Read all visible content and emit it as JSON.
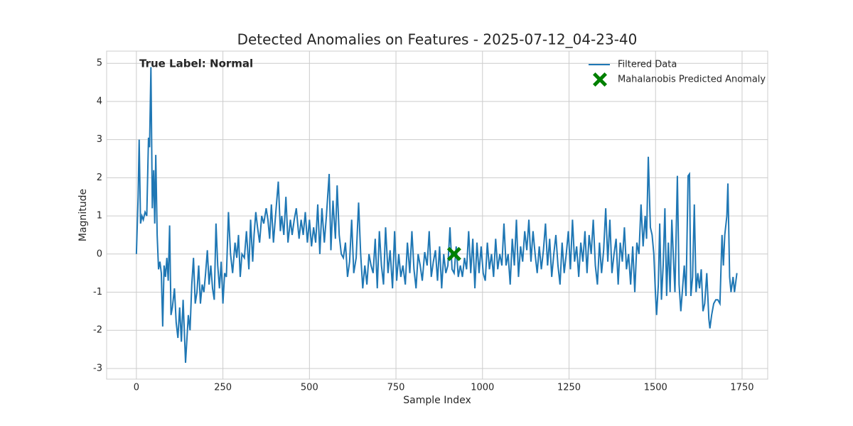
{
  "chart_data": {
    "type": "line",
    "title": "Detected Anomalies on Features - 2025-07-12_04-23-40",
    "xlabel": "Sample Index",
    "ylabel": "Magnitude",
    "annotation": "True Label: Normal",
    "xlim": [
      -86,
      1824
    ],
    "ylim": [
      -3.28,
      5.32
    ],
    "xticks": [
      0,
      250,
      500,
      750,
      1000,
      1250,
      1500,
      1750
    ],
    "yticks": [
      -3,
      -2,
      -1,
      0,
      1,
      2,
      3,
      4,
      5
    ],
    "grid": true,
    "legend": "upper right",
    "series": [
      {
        "name": "Filtered Data",
        "type": "line",
        "color": "#1f77b4",
        "x": [
          0,
          5,
          8,
          12,
          16,
          20,
          25,
          30,
          35,
          38,
          42,
          46,
          50,
          53,
          56,
          60,
          64,
          68,
          72,
          76,
          80,
          84,
          88,
          92,
          96,
          100,
          104,
          110,
          115,
          120,
          125,
          130,
          135,
          142,
          150,
          155,
          160,
          165,
          170,
          175,
          180,
          185,
          190,
          195,
          200,
          205,
          210,
          215,
          220,
          225,
          230,
          235,
          240,
          245,
          250,
          255,
          260,
          266,
          272,
          278,
          285,
          290,
          295,
          300,
          305,
          312,
          318,
          325,
          330,
          336,
          340,
          345,
          350,
          356,
          362,
          368,
          375,
          380,
          385,
          390,
          396,
          402,
          410,
          416,
          420,
          426,
          432,
          438,
          445,
          450,
          456,
          462,
          470,
          476,
          482,
          488,
          494,
          500,
          506,
          512,
          518,
          524,
          530,
          536,
          543,
          549,
          557,
          562,
          568,
          575,
          580,
          586,
          592,
          598,
          604,
          610,
          616,
          622,
          628,
          635,
          642,
          648,
          654,
          660,
          666,
          672,
          678,
          684,
          690,
          696,
          702,
          708,
          714,
          720,
          727,
          733,
          740,
          746,
          752,
          758,
          764,
          770,
          777,
          783,
          790,
          796,
          802,
          808,
          814,
          820,
          826,
          833,
          840,
          846,
          852,
          858,
          864,
          870,
          876,
          882,
          888,
          894,
          900,
          906,
          912,
          918,
          924,
          930,
          936,
          942,
          948,
          954,
          960,
          966,
          972,
          978,
          984,
          990,
          996,
          1002,
          1008,
          1014,
          1020,
          1026,
          1032,
          1038,
          1044,
          1050,
          1056,
          1062,
          1068,
          1074,
          1080,
          1086,
          1092,
          1098,
          1104,
          1110,
          1116,
          1122,
          1128,
          1134,
          1140,
          1146,
          1152,
          1158,
          1164,
          1170,
          1176,
          1182,
          1188,
          1194,
          1200,
          1206,
          1212,
          1218,
          1224,
          1230,
          1236,
          1242,
          1248,
          1254,
          1260,
          1266,
          1272,
          1278,
          1284,
          1290,
          1296,
          1302,
          1308,
          1314,
          1320,
          1326,
          1332,
          1338,
          1344,
          1350,
          1356,
          1362,
          1368,
          1374,
          1380,
          1386,
          1392,
          1398,
          1404,
          1410,
          1416,
          1422,
          1428,
          1434,
          1440,
          1446,
          1452,
          1458,
          1464,
          1470,
          1474,
          1479,
          1485,
          1490,
          1495,
          1500,
          1503,
          1508,
          1512,
          1517,
          1522,
          1527,
          1532,
          1537,
          1542,
          1547,
          1552,
          1556,
          1563,
          1568,
          1573,
          1578,
          1583,
          1588,
          1594,
          1598,
          1602,
          1607,
          1612,
          1617,
          1622,
          1627,
          1632,
          1637,
          1642,
          1648,
          1654,
          1657,
          1662,
          1668,
          1674,
          1680,
          1686,
          1692,
          1696,
          1700,
          1706,
          1709,
          1714,
          1718,
          1724,
          1728,
          1735
        ],
        "values": [
          0,
          1.5,
          3.0,
          0.8,
          1.0,
          0.9,
          1.1,
          1.0,
          3.05,
          2.8,
          4.9,
          1.2,
          2.2,
          0.8,
          2.6,
          0.5,
          -0.4,
          -0.2,
          -0.5,
          -1.9,
          -0.3,
          -0.6,
          -0.1,
          -0.7,
          0.75,
          -1.6,
          -1.4,
          -0.9,
          -1.8,
          -2.2,
          -1.4,
          -2.3,
          -1.2,
          -2.85,
          -1.6,
          -2.0,
          -0.8,
          -0.1,
          -1.3,
          -1.0,
          -0.3,
          -1.3,
          -0.8,
          -1.0,
          -0.5,
          0.1,
          -0.8,
          -0.3,
          -0.9,
          -1.2,
          0.8,
          -0.3,
          -0.9,
          -0.2,
          -1.3,
          -0.5,
          -0.6,
          1.1,
          0.0,
          -0.5,
          0.3,
          -0.1,
          0.5,
          -0.6,
          0.0,
          -0.1,
          0.6,
          -0.4,
          0.9,
          -0.2,
          0.5,
          1.1,
          0.7,
          0.3,
          1.0,
          0.8,
          1.2,
          0.9,
          0.4,
          1.3,
          0.3,
          1.0,
          1.9,
          0.6,
          1.0,
          0.5,
          1.5,
          0.3,
          0.9,
          0.5,
          0.9,
          1.2,
          0.4,
          0.9,
          0.5,
          1.1,
          0.3,
          0.9,
          0.2,
          0.7,
          0.3,
          1.3,
          0.0,
          1.2,
          0.3,
          1.0,
          2.1,
          0.1,
          1.4,
          0.4,
          1.8,
          0.5,
          0.0,
          -0.1,
          0.3,
          -0.6,
          -0.2,
          0.9,
          -0.5,
          -0.1,
          1.35,
          0.0,
          -0.9,
          -0.3,
          -0.8,
          0.0,
          -0.3,
          -0.5,
          0.4,
          -0.9,
          0.6,
          -0.3,
          -0.8,
          0.7,
          -0.5,
          0.1,
          -0.9,
          0.6,
          -0.7,
          0.0,
          -0.6,
          -0.3,
          -0.8,
          0.3,
          -0.5,
          0.6,
          -0.4,
          -0.9,
          0.0,
          -0.3,
          -0.7,
          0.05,
          -0.3,
          0.6,
          -0.6,
          -0.2,
          0.1,
          -0.7,
          0.2,
          -0.9,
          0.0,
          -0.5,
          -0.3,
          0.7,
          -0.4,
          -0.5,
          0.2,
          -0.6,
          -0.3,
          -0.6,
          -0.1,
          -0.4,
          0.6,
          -0.5,
          0.4,
          -0.9,
          0.3,
          -0.5,
          0.2,
          -0.5,
          -0.7,
          0.3,
          -0.4,
          0.0,
          -0.6,
          0.4,
          -0.4,
          0.0,
          -0.3,
          0.8,
          -0.3,
          0.0,
          -0.8,
          0.4,
          -0.3,
          0.9,
          -0.6,
          0.2,
          -0.2,
          0.6,
          0.1,
          0.9,
          -0.2,
          0.6,
          0.0,
          -0.5,
          0.2,
          -0.4,
          0.1,
          0.8,
          -0.3,
          0.4,
          -0.6,
          0.0,
          0.5,
          -0.3,
          -0.8,
          0.3,
          -0.5,
          0.0,
          0.6,
          -0.4,
          0.9,
          -0.2,
          0.2,
          -0.6,
          0.3,
          -0.2,
          0.6,
          -0.5,
          0.5,
          0.0,
          0.9,
          -0.3,
          -0.8,
          0.3,
          -0.5,
          0.1,
          1.2,
          -0.2,
          0.9,
          -0.5,
          0.0,
          0.4,
          -0.8,
          0.3,
          -0.2,
          0.7,
          -0.4,
          0.0,
          -0.8,
          0.2,
          -1.0,
          0.3,
          0.0,
          1.3,
          0.2,
          1.0,
          0.4,
          2.55,
          0.7,
          0.5,
          0.0,
          -1.1,
          -1.6,
          -0.8,
          0.8,
          -1.2,
          -0.3,
          1.2,
          -1.1,
          0.3,
          -1.0,
          0.9,
          -0.2,
          -1.0,
          2.05,
          -0.8,
          -1.5,
          -0.9,
          -0.3,
          -1.1,
          2.05,
          2.1,
          -1.1,
          -0.6,
          1.3,
          -1.0,
          -0.5,
          -0.9,
          -0.4,
          -1.5,
          -1.3,
          -0.5,
          -1.7,
          -1.95,
          -1.6,
          -1.3,
          -1.2,
          -1.2,
          -1.3,
          0.5,
          -0.3,
          0.5,
          1.0,
          1.85,
          -0.6,
          -1.0,
          -0.6,
          -1.0,
          -0.5
        ]
      },
      {
        "name": "Mahalanobis Predicted Anomaly",
        "type": "scatter",
        "color": "#008000",
        "marker": "X",
        "x": [
          918
        ],
        "values": [
          0
        ]
      }
    ]
  }
}
